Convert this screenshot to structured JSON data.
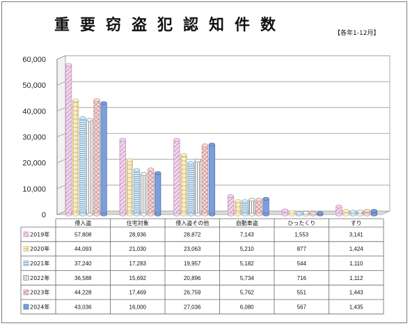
{
  "title": "重要窃盗犯認知件数",
  "subtitle": "【各年1-12月】",
  "chart_data": {
    "type": "bar",
    "title": "重要窃盗犯認知件数",
    "subtitle": "【各年1-12月】",
    "categories": [
      "侵入盗",
      "住宅対象",
      "侵入盗その他",
      "自動車盗",
      "ひったくり",
      "すり"
    ],
    "ylim": [
      0,
      60000
    ],
    "yticks": [
      "0",
      "10,000",
      "20,000",
      "30,000",
      "40,000",
      "50,000",
      "60,000"
    ],
    "grid": true,
    "legend": "data table below chart",
    "series": [
      {
        "name": "2019年",
        "values": [
          57808,
          28936,
          28872,
          7143,
          1553,
          3141
        ],
        "labels": [
          "57,808",
          "28,936",
          "28,872",
          "7,143",
          "1,553",
          "3,141"
        ],
        "color": "#f2d8ee",
        "stroke": "#c08ab8"
      },
      {
        "name": "2020年",
        "values": [
          44093,
          21030,
          23063,
          5210,
          877,
          1424
        ],
        "labels": [
          "44,093",
          "21,030",
          "23,063",
          "5,210",
          "877",
          "1,424"
        ],
        "color": "#fbf0cc",
        "stroke": "#cdb778"
      },
      {
        "name": "2021年",
        "values": [
          37240,
          17283,
          19957,
          5182,
          544,
          1110
        ],
        "labels": [
          "37,240",
          "17,283",
          "19,957",
          "5,182",
          "544",
          "1,110"
        ],
        "color": "#d6eaf8",
        "stroke": "#7ea7c7"
      },
      {
        "name": "2022年",
        "values": [
          36588,
          15692,
          20896,
          5734,
          716,
          1112
        ],
        "labels": [
          "36,588",
          "15,692",
          "20,896",
          "5,734",
          "716",
          "1,112"
        ],
        "color": "#f7f7f7",
        "stroke": "#8c8c8c"
      },
      {
        "name": "2023年",
        "values": [
          44228,
          17469,
          26759,
          5762,
          551,
          1443
        ],
        "labels": [
          "44,228",
          "17,469",
          "26,759",
          "5,762",
          "551",
          "1,443"
        ],
        "color": "#f8dcdc",
        "stroke": "#c48f8f"
      },
      {
        "name": "2024年",
        "values": [
          43036,
          16000,
          27036,
          6080,
          567,
          1435
        ],
        "labels": [
          "43,036",
          "16,000",
          "27,036",
          "6,080",
          "567",
          "1,435"
        ],
        "color": "#7c9fdb",
        "stroke": "#4a6aa8"
      }
    ]
  }
}
